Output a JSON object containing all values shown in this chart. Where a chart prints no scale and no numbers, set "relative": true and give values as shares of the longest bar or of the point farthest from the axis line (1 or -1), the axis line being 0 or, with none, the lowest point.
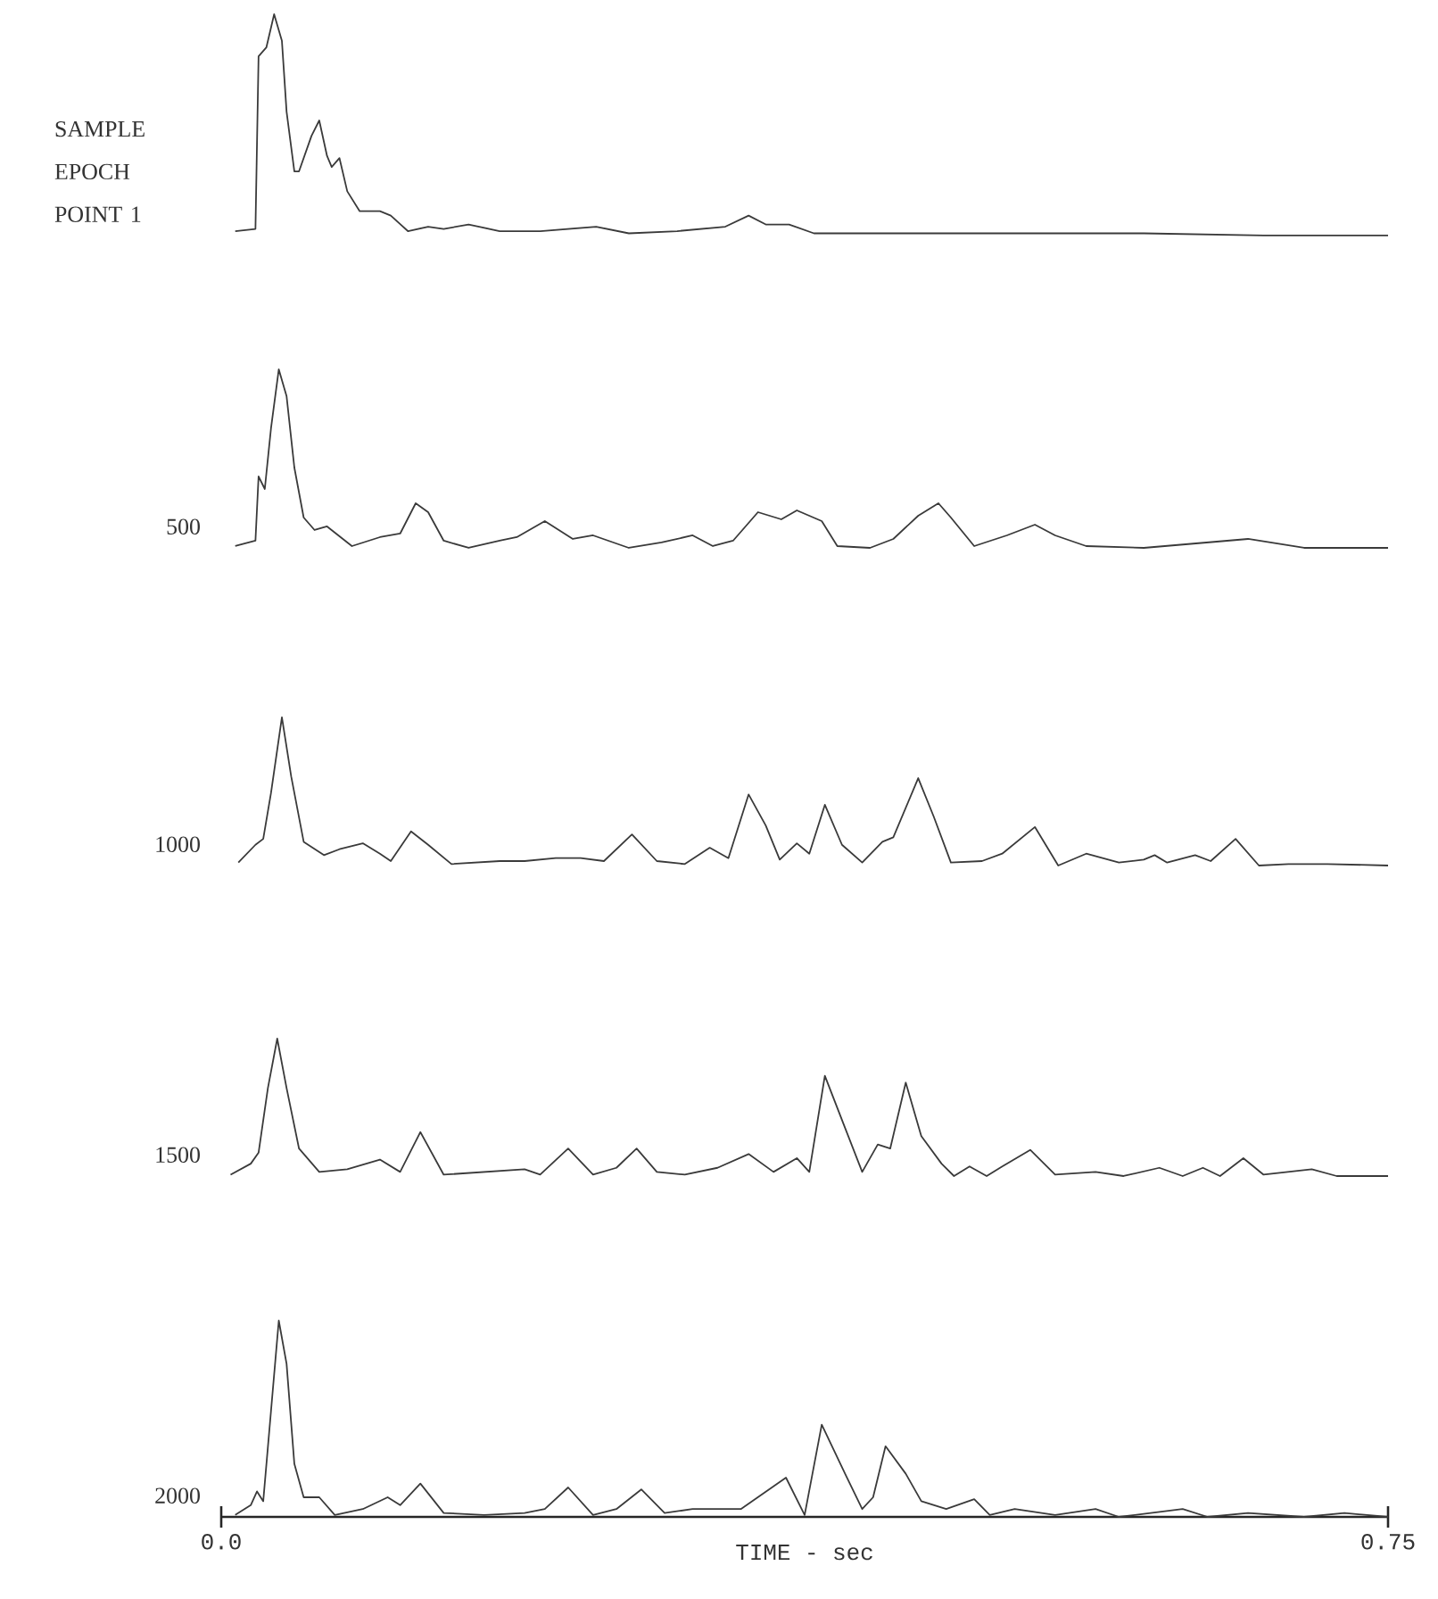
{
  "chart_data": [
    {
      "type": "line",
      "relative": true,
      "xlim": [
        0,
        0.75
      ],
      "tick_labels": false,
      "x": [
        0.009,
        0.022,
        0.024,
        0.029,
        0.034,
        0.039,
        0.042,
        0.047,
        0.05,
        0.058,
        0.063,
        0.068,
        0.071,
        0.076,
        0.081,
        0.089,
        0.102,
        0.109,
        0.12,
        0.133,
        0.143,
        0.159,
        0.179,
        0.205,
        0.241,
        0.262,
        0.293,
        0.324,
        0.339,
        0.35,
        0.365,
        0.381,
        0.437,
        0.489,
        0.593,
        0.67,
        0.75
      ],
      "series": [
        {
          "name": "SAMPLE EPOCH POINT 1",
          "color": "#3a3a3a",
          "values": [
            0.02,
            0.03,
            0.81,
            0.85,
            1,
            0.88,
            0.56,
            0.29,
            0.29,
            0.45,
            0.52,
            0.36,
            0.31,
            0.35,
            0.2,
            0.11,
            0.11,
            0.09,
            0.02,
            0.04,
            0.03,
            0.05,
            0.02,
            0.02,
            0.04,
            0.01,
            0.02,
            0.04,
            0.09,
            0.05,
            0.05,
            0.01,
            0.01,
            0.01,
            0.01,
            0,
            0
          ]
        }
      ]
    },
    {
      "type": "line",
      "relative": true,
      "xlim": [
        0,
        0.75
      ],
      "tick_labels": false,
      "x": [
        0.009,
        0.022,
        0.024,
        0.028,
        0.032,
        0.037,
        0.042,
        0.047,
        0.053,
        0.06,
        0.068,
        0.084,
        0.102,
        0.115,
        0.125,
        0.133,
        0.143,
        0.159,
        0.179,
        0.19,
        0.208,
        0.226,
        0.239,
        0.262,
        0.283,
        0.303,
        0.316,
        0.329,
        0.345,
        0.36,
        0.37,
        0.386,
        0.396,
        0.417,
        0.432,
        0.448,
        0.461,
        0.469,
        0.484,
        0.505,
        0.523,
        0.536,
        0.556,
        0.593,
        0.66,
        0.696,
        0.75
      ],
      "series": [
        {
          "name": "500",
          "color": "#3a3a3a",
          "values": [
            0.01,
            0.04,
            0.4,
            0.33,
            0.67,
            1,
            0.85,
            0.45,
            0.17,
            0.1,
            0.12,
            0.01,
            0.06,
            0.08,
            0.25,
            0.2,
            0.04,
            0,
            0.04,
            0.06,
            0.15,
            0.05,
            0.07,
            0,
            0.03,
            0.07,
            0.01,
            0.04,
            0.2,
            0.16,
            0.21,
            0.15,
            0.01,
            0,
            0.05,
            0.18,
            0.25,
            0.17,
            0.01,
            0.07,
            0.13,
            0.07,
            0.01,
            0,
            0.05,
            0,
            0
          ]
        }
      ]
    },
    {
      "type": "line",
      "relative": true,
      "xlim": [
        0,
        0.75
      ],
      "tick_labels": false,
      "x": [
        0.011,
        0.022,
        0.027,
        0.032,
        0.039,
        0.045,
        0.053,
        0.066,
        0.076,
        0.091,
        0.102,
        0.109,
        0.122,
        0.133,
        0.148,
        0.179,
        0.195,
        0.215,
        0.231,
        0.246,
        0.264,
        0.28,
        0.298,
        0.314,
        0.326,
        0.339,
        0.35,
        0.359,
        0.37,
        0.378,
        0.388,
        0.399,
        0.412,
        0.425,
        0.432,
        0.448,
        0.458,
        0.469,
        0.489,
        0.502,
        0.523,
        0.538,
        0.556,
        0.577,
        0.593,
        0.6,
        0.608,
        0.626,
        0.636,
        0.652,
        0.667,
        0.686,
        0.711,
        0.75
      ],
      "series": [
        {
          "name": "1000",
          "color": "#3a3a3a",
          "values": [
            0.02,
            0.14,
            0.18,
            0.49,
            1,
            0.6,
            0.16,
            0.07,
            0.11,
            0.15,
            0.08,
            0.03,
            0.23,
            0.14,
            0.01,
            0.03,
            0.03,
            0.05,
            0.05,
            0.03,
            0.21,
            0.03,
            0.01,
            0.12,
            0.05,
            0.48,
            0.27,
            0.04,
            0.15,
            0.08,
            0.41,
            0.14,
            0.02,
            0.16,
            0.19,
            0.59,
            0.33,
            0.02,
            0.03,
            0.08,
            0.26,
            0,
            0.08,
            0.02,
            0.04,
            0.07,
            0.02,
            0.07,
            0.03,
            0.18,
            0,
            0.01,
            0.01,
            0
          ]
        }
      ]
    },
    {
      "type": "line",
      "relative": true,
      "xlim": [
        0,
        0.75
      ],
      "tick_labels": false,
      "x": [
        0.006,
        0.019,
        0.024,
        0.03,
        0.036,
        0.042,
        0.05,
        0.063,
        0.081,
        0.102,
        0.115,
        0.128,
        0.143,
        0.169,
        0.195,
        0.205,
        0.223,
        0.239,
        0.254,
        0.267,
        0.28,
        0.298,
        0.319,
        0.339,
        0.355,
        0.37,
        0.378,
        0.388,
        0.401,
        0.412,
        0.422,
        0.43,
        0.44,
        0.45,
        0.463,
        0.471,
        0.481,
        0.492,
        0.502,
        0.52,
        0.536,
        0.562,
        0.58,
        0.603,
        0.618,
        0.631,
        0.642,
        0.657,
        0.67,
        0.701,
        0.717,
        0.75
      ],
      "series": [
        {
          "name": "1500",
          "color": "#3a3a3a",
          "values": [
            0.01,
            0.09,
            0.17,
            0.64,
            1,
            0.64,
            0.2,
            0.03,
            0.05,
            0.12,
            0.03,
            0.32,
            0.01,
            0.03,
            0.05,
            0.01,
            0.2,
            0.01,
            0.06,
            0.2,
            0.03,
            0.01,
            0.06,
            0.16,
            0.03,
            0.13,
            0.03,
            0.73,
            0.35,
            0.03,
            0.23,
            0.2,
            0.68,
            0.29,
            0.09,
            0,
            0.07,
            0,
            0.07,
            0.19,
            0.01,
            0.03,
            0,
            0.06,
            0,
            0.06,
            0,
            0.13,
            0.01,
            0.05,
            0,
            0
          ]
        }
      ]
    },
    {
      "type": "line",
      "relative": true,
      "xlim": [
        0,
        0.75
      ],
      "xticks": [
        {
          "value": 0,
          "label": "0.0"
        },
        0.75
      ],
      "xlabel": "TIME - sec",
      "x": [
        0.009,
        0.019,
        0.023,
        0.027,
        0.032,
        0.037,
        0.042,
        0.047,
        0.053,
        0.063,
        0.073,
        0.091,
        0.107,
        0.115,
        0.128,
        0.143,
        0.169,
        0.195,
        0.208,
        0.223,
        0.239,
        0.254,
        0.27,
        0.285,
        0.303,
        0.334,
        0.363,
        0.375,
        0.386,
        0.401,
        0.412,
        0.419,
        0.427,
        0.44,
        0.45,
        0.466,
        0.484,
        0.494,
        0.51,
        0.536,
        0.562,
        0.577,
        0.618,
        0.634,
        0.66,
        0.696,
        0.722,
        0.75
      ],
      "series": [
        {
          "name": "2000",
          "color": "#3a3a3a",
          "values": [
            0.01,
            0.06,
            0.13,
            0.08,
            0.54,
            1,
            0.78,
            0.27,
            0.1,
            0.1,
            0.01,
            0.04,
            0.1,
            0.06,
            0.17,
            0.02,
            0.01,
            0.02,
            0.04,
            0.15,
            0.01,
            0.04,
            0.14,
            0.02,
            0.04,
            0.04,
            0.2,
            0.01,
            0.47,
            0.22,
            0.04,
            0.1,
            0.36,
            0.22,
            0.08,
            0.04,
            0.09,
            0.01,
            0.04,
            0.01,
            0.04,
            0,
            0.04,
            0,
            0.02,
            0,
            0.02,
            0
          ]
        }
      ]
    }
  ]
}
